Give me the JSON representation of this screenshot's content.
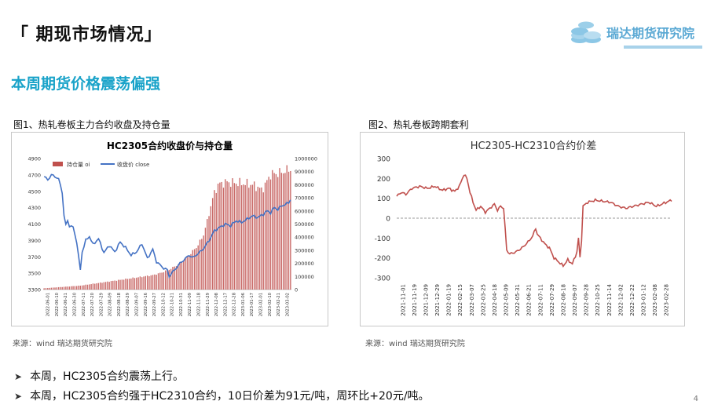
{
  "header": {
    "title": "「 期现市场情况」",
    "logo_text": "瑞达期货研究院"
  },
  "subtitle": "本周期货价格震荡偏强",
  "figures": [
    {
      "caption": "图1、热轧卷板主力合约收盘及持仓量",
      "source": "来源：wind   瑞达期货研究院"
    },
    {
      "caption": "图2、热轧卷板跨期套利",
      "source": "来源：wind   瑞达期货研究院"
    }
  ],
  "bullets": [
    "本周，HC2305合约震荡上行。",
    "本周，HC2305合约强于HC2310合约，10日价差为91元/吨，周环比+20元/吨。"
  ],
  "page_number": "4",
  "colors": {
    "accent": "#1aa3c9",
    "bar": "#c0504d",
    "line_blue": "#4472c4",
    "line_red": "#c0504d"
  },
  "chart_data": [
    {
      "type": "bar+line",
      "title": "HC2305合约收盘价与持仓量",
      "legend": [
        "持仓量 oi",
        "收盘价 close"
      ],
      "legend_position": "top-left",
      "ylim_left": [
        3300,
        4900
      ],
      "yticks_left": [
        "3300",
        "3500",
        "3700",
        "3900",
        "4100",
        "4300",
        "4500",
        "4700",
        "4900"
      ],
      "ylim_right": [
        0,
        1000000
      ],
      "yticks_right": [
        "0",
        "100000",
        "200000",
        "300000",
        "400000",
        "500000",
        "600000",
        "700000",
        "800000",
        "900000",
        "1000000"
      ],
      "x_tick_labels": [
        "2022-06-01",
        "2022-06-10",
        "2022-06-21",
        "2022-06-30",
        "2022-07-11",
        "2022-07-20",
        "2022-07-29",
        "2022-08-09",
        "2022-08-18",
        "2022-08-29",
        "2022-09-07",
        "2022-09-16",
        "2022-09-27",
        "2022-10-12",
        "2022-10-21",
        "2022-10-31",
        "2022-11-09",
        "2022-11-18",
        "2022-11-29",
        "2022-12-08",
        "2022-12-17",
        "2022-12-28",
        "2023-01-06",
        "2023-01-17",
        "2023-02-01",
        "2023-02-10",
        "2023-02-21",
        "2023-03-02"
      ],
      "close_anchors": [
        [
          0,
          4680
        ],
        [
          2,
          4640
        ],
        [
          4,
          4700
        ],
        [
          6,
          4680
        ],
        [
          8,
          4650
        ],
        [
          10,
          4490
        ],
        [
          11,
          4200
        ],
        [
          12,
          4090
        ],
        [
          13,
          4140
        ],
        [
          14,
          4080
        ],
        [
          16,
          4060
        ],
        [
          18,
          3880
        ],
        [
          19,
          3700
        ],
        [
          20,
          3540
        ],
        [
          21,
          3760
        ],
        [
          23,
          3900
        ],
        [
          25,
          3950
        ],
        [
          27,
          3850
        ],
        [
          30,
          3920
        ],
        [
          33,
          3750
        ],
        [
          36,
          3840
        ],
        [
          39,
          3760
        ],
        [
          42,
          3880
        ],
        [
          45,
          3810
        ],
        [
          48,
          3720
        ],
        [
          51,
          3760
        ],
        [
          54,
          3860
        ],
        [
          57,
          3680
        ],
        [
          60,
          3790
        ],
        [
          62,
          3640
        ],
        [
          64,
          3600
        ],
        [
          66,
          3560
        ],
        [
          68,
          3540
        ],
        [
          69,
          3460
        ],
        [
          70,
          3490
        ],
        [
          72,
          3540
        ],
        [
          75,
          3620
        ],
        [
          78,
          3680
        ],
        [
          80,
          3720
        ],
        [
          82,
          3690
        ],
        [
          85,
          3740
        ],
        [
          88,
          3800
        ],
        [
          91,
          3900
        ],
        [
          94,
          4020
        ],
        [
          97,
          4060
        ],
        [
          100,
          4100
        ],
        [
          103,
          4080
        ],
        [
          106,
          4140
        ],
        [
          109,
          4120
        ],
        [
          112,
          4160
        ],
        [
          115,
          4200
        ],
        [
          118,
          4180
        ],
        [
          121,
          4220
        ],
        [
          123,
          4260
        ],
        [
          125,
          4240
        ],
        [
          127,
          4300
        ],
        [
          129,
          4280
        ],
        [
          131,
          4320
        ],
        [
          133,
          4340
        ],
        [
          135,
          4360
        ],
        [
          136,
          4400
        ]
      ],
      "oi_anchors": [
        [
          0,
          10000
        ],
        [
          10,
          20000
        ],
        [
          20,
          30000
        ],
        [
          30,
          50000
        ],
        [
          40,
          70000
        ],
        [
          50,
          90000
        ],
        [
          60,
          110000
        ],
        [
          65,
          130000
        ],
        [
          70,
          160000
        ],
        [
          75,
          200000
        ],
        [
          80,
          260000
        ],
        [
          85,
          340000
        ],
        [
          88,
          420000
        ],
        [
          90,
          520000
        ],
        [
          92,
          640000
        ],
        [
          94,
          740000
        ],
        [
          96,
          800000
        ],
        [
          100,
          820000
        ],
        [
          110,
          810000
        ],
        [
          115,
          800000
        ],
        [
          118,
          780000
        ],
        [
          120,
          760000
        ],
        [
          122,
          800000
        ],
        [
          125,
          880000
        ],
        [
          130,
          890000
        ],
        [
          136,
          920000
        ]
      ],
      "n_points": 137
    },
    {
      "type": "line",
      "title": "HC2305-HC2310合约价差",
      "ylim": [
        -300,
        300
      ],
      "yticks": [
        "300",
        "200",
        "100",
        "0",
        "-100",
        "-200",
        "-300"
      ],
      "x_tick_labels": [
        "2021-11-01",
        "2021-11-19",
        "2021-12-09",
        "2021-12-29",
        "2022-01-19",
        "2022-02-15",
        "2022-03-07",
        "2022-03-25",
        "2022-04-18",
        "2022-05-09",
        "2022-05-31",
        "2022-06-21",
        "2022-07-11",
        "2022-07-29",
        "2022-08-18",
        "2022-09-07",
        "2022-09-28",
        "2022-10-25",
        "2022-11-14",
        "2022-12-02",
        "2022-12-22",
        "2023-01-12",
        "2023-02-08",
        "2023-02-28"
      ],
      "spread_anchors": [
        [
          0,
          110
        ],
        [
          3,
          130
        ],
        [
          6,
          120
        ],
        [
          10,
          150
        ],
        [
          15,
          160
        ],
        [
          20,
          150
        ],
        [
          25,
          160
        ],
        [
          30,
          140
        ],
        [
          34,
          150
        ],
        [
          38,
          135
        ],
        [
          41,
          160
        ],
        [
          44,
          220
        ],
        [
          46,
          200
        ],
        [
          48,
          130
        ],
        [
          50,
          80
        ],
        [
          52,
          40
        ],
        [
          55,
          60
        ],
        [
          58,
          30
        ],
        [
          61,
          50
        ],
        [
          64,
          70
        ],
        [
          66,
          40
        ],
        [
          68,
          60
        ],
        [
          70,
          50
        ],
        [
          72,
          -160
        ],
        [
          74,
          -180
        ],
        [
          78,
          -170
        ],
        [
          82,
          -150
        ],
        [
          86,
          -120
        ],
        [
          89,
          -90
        ],
        [
          91,
          -50
        ],
        [
          92,
          -80
        ],
        [
          94,
          -100
        ],
        [
          97,
          -130
        ],
        [
          100,
          -150
        ],
        [
          103,
          -200
        ],
        [
          106,
          -220
        ],
        [
          109,
          -240
        ],
        [
          112,
          -210
        ],
        [
          115,
          -230
        ],
        [
          118,
          -170
        ],
        [
          119,
          -100
        ],
        [
          120,
          -200
        ],
        [
          121,
          -110
        ],
        [
          122,
          60
        ],
        [
          125,
          80
        ],
        [
          130,
          90
        ],
        [
          135,
          85
        ],
        [
          140,
          80
        ],
        [
          145,
          60
        ],
        [
          150,
          50
        ],
        [
          155,
          60
        ],
        [
          160,
          70
        ],
        [
          165,
          80
        ],
        [
          170,
          60
        ],
        [
          175,
          75
        ],
        [
          180,
          91
        ]
      ],
      "n_points": 181
    }
  ]
}
